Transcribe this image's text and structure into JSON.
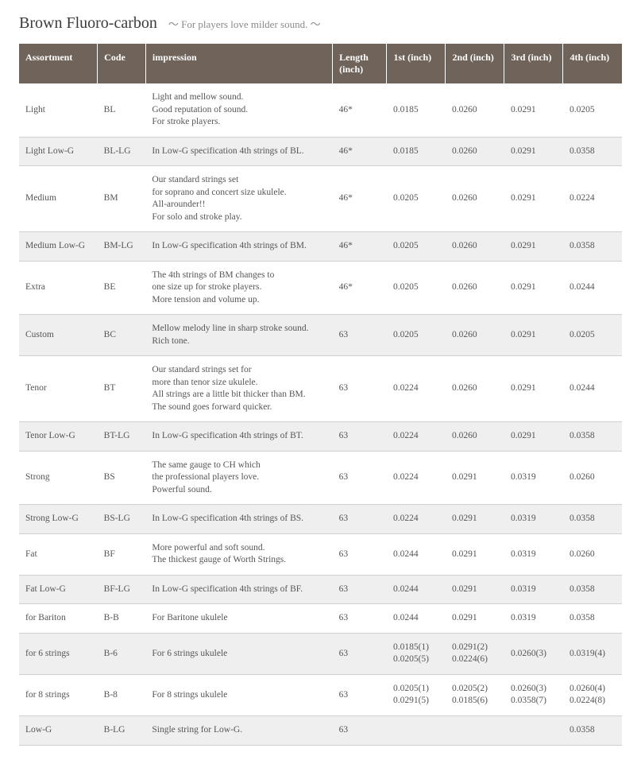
{
  "header": {
    "title": "Brown Fluoro-carbon",
    "subtitle": "～  For players love milder sound. ～"
  },
  "table": {
    "columns": [
      "Assortment",
      "Code",
      "impression",
      "Length (inch)",
      "1st (inch)",
      "2nd (inch)",
      "3rd (inch)",
      "4th (inch)"
    ],
    "rows": [
      {
        "assortment": "Light",
        "code": "BL",
        "impression": "Light and mellow sound.\nGood reputation of sound.\nFor stroke players.",
        "length": "46*",
        "n1": "0.0185",
        "n2": "0.0260",
        "n3": "0.0291",
        "n4": "0.0205"
      },
      {
        "assortment": "Light Low-G",
        "code": "BL-LG",
        "impression": "In Low-G specification 4th strings of BL.",
        "length": "46*",
        "n1": "0.0185",
        "n2": "0.0260",
        "n3": "0.0291",
        "n4": "0.0358"
      },
      {
        "assortment": "Medium",
        "code": "BM",
        "impression": "Our standard strings set\nfor soprano and concert size ukulele.\nAll-arounder!!\nFor solo and stroke play.",
        "length": "46*",
        "n1": "0.0205",
        "n2": "0.0260",
        "n3": "0.0291",
        "n4": "0.0224"
      },
      {
        "assortment": "Medium Low-G",
        "code": "BM-LG",
        "impression": "In Low-G specification 4th strings of BM.",
        "length": "46*",
        "n1": "0.0205",
        "n2": "0.0260",
        "n3": "0.0291",
        "n4": "0.0358"
      },
      {
        "assortment": "Extra",
        "code": "BE",
        "impression": "The 4th strings of BM changes to\none size up for stroke players.\nMore tension and volume up.",
        "length": "46*",
        "n1": "0.0205",
        "n2": "0.0260",
        "n3": "0.0291",
        "n4": "0.0244"
      },
      {
        "assortment": "Custom",
        "code": "BC",
        "impression": "Mellow melody line in sharp stroke sound.\nRich tone.",
        "length": "63",
        "n1": "0.0205",
        "n2": "0.0260",
        "n3": "0.0291",
        "n4": "0.0205"
      },
      {
        "assortment": "Tenor",
        "code": "BT",
        "impression": "Our standard strings set for\nmore than tenor size ukulele.\nAll strings are a little bit thicker than BM.\nThe sound goes forward quicker.",
        "length": "63",
        "n1": "0.0224",
        "n2": "0.0260",
        "n3": "0.0291",
        "n4": "0.0244"
      },
      {
        "assortment": "Tenor Low-G",
        "code": "BT-LG",
        "impression": "In Low-G specification 4th strings of BT.",
        "length": "63",
        "n1": "0.0224",
        "n2": "0.0260",
        "n3": "0.0291",
        "n4": "0.0358"
      },
      {
        "assortment": "Strong",
        "code": "BS",
        "impression": "The same gauge to CH which\nthe professional players love.\nPowerful sound.",
        "length": "63",
        "n1": "0.0224",
        "n2": "0.0291",
        "n3": "0.0319",
        "n4": "0.0260"
      },
      {
        "assortment": "Strong Low-G",
        "code": "BS-LG",
        "impression": "In Low-G specification 4th strings of BS.",
        "length": "63",
        "n1": "0.0224",
        "n2": "0.0291",
        "n3": "0.0319",
        "n4": "0.0358"
      },
      {
        "assortment": "Fat",
        "code": "BF",
        "impression": "More powerful and soft sound.\nThe thickest gauge of Worth Strings.",
        "length": "63",
        "n1": "0.0244",
        "n2": "0.0291",
        "n3": "0.0319",
        "n4": "0.0260"
      },
      {
        "assortment": "Fat Low-G",
        "code": "BF-LG",
        "impression": "In Low-G specification 4th strings of BF.",
        "length": "63",
        "n1": "0.0244",
        "n2": "0.0291",
        "n3": "0.0319",
        "n4": "0.0358"
      },
      {
        "assortment": "for Bariton",
        "code": "B-B",
        "impression": "For Baritone ukulele",
        "length": "63",
        "n1": "0.0244",
        "n2": "0.0291",
        "n3": "0.0319",
        "n4": "0.0358"
      },
      {
        "assortment": "for 6 strings",
        "code": "B-6",
        "impression": "For 6 strings ukulele",
        "length": "63",
        "n1": "0.0185(1)\n0.0205(5)",
        "n2": "0.0291(2)\n0.0224(6)",
        "n3": "0.0260(3)",
        "n4": "0.0319(4)"
      },
      {
        "assortment": "for 8 strings",
        "code": "B-8",
        "impression": "For 8 strings ukulele",
        "length": "63",
        "n1": "0.0205(1)\n0.0291(5)",
        "n2": "0.0205(2)\n0.0185(6)",
        "n3": "0.0260(3)\n0.0358(7)",
        "n4": "0.0260(4)\n0.0224(8)"
      },
      {
        "assortment": "Low-G",
        "code": "B-LG",
        "impression": "Single string for Low-G.",
        "length": "63",
        "n1": "",
        "n2": "",
        "n3": "",
        "n4": "0.0358"
      }
    ]
  }
}
